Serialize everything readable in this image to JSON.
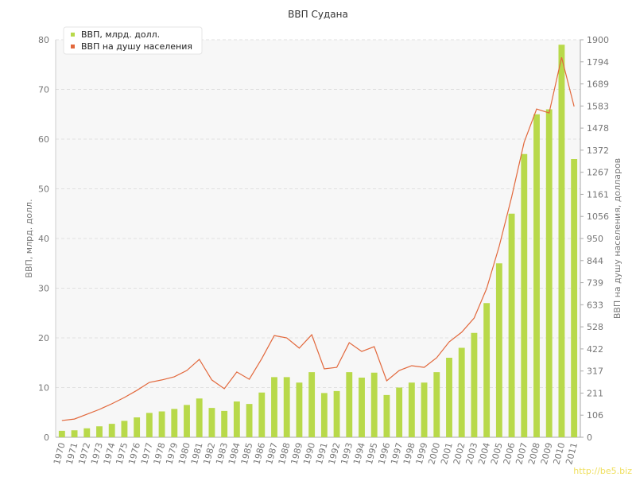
{
  "chart_data": {
    "type": "bar_line",
    "title": "ВВП Судана",
    "y_label": "ВВП, млрд. долл.",
    "y2_label": "ВВП на душу населения, долларов",
    "watermark": "http://be5.biz",
    "categories": [
      "1970",
      "1971",
      "1972",
      "1973",
      "1974",
      "1975",
      "1976",
      "1977",
      "1978",
      "1979",
      "1980",
      "1981",
      "1982",
      "1983",
      "1984",
      "1985",
      "1986",
      "1987",
      "1988",
      "1989",
      "1990",
      "1991",
      "1992",
      "1993",
      "1994",
      "1995",
      "1996",
      "1997",
      "1998",
      "1999",
      "2000",
      "2001",
      "2002",
      "2003",
      "2004",
      "2005",
      "2006",
      "2007",
      "2008",
      "2009",
      "2010",
      "2011"
    ],
    "series": [
      {
        "name": "ВВП, млрд. долл.",
        "color": "#b8d94a",
        "type": "bar",
        "values": [
          1.3,
          1.4,
          1.8,
          2.2,
          2.7,
          3.3,
          4.0,
          4.9,
          5.2,
          5.7,
          6.5,
          7.8,
          5.9,
          5.3,
          7.2,
          6.7,
          9.0,
          12.1,
          12.1,
          11.0,
          13.1,
          8.9,
          9.3,
          13.1,
          12.0,
          13.0,
          8.5,
          10.0,
          11.0,
          11.0,
          13.1,
          16.0,
          18.0,
          21.0,
          27.0,
          35.0,
          45.0,
          57.0,
          65.0,
          66.0,
          79.0,
          56.0
        ]
      },
      {
        "name": "ВВП на душу населения",
        "color": "#e2683c",
        "type": "line",
        "axis": "y2",
        "values": [
          80,
          87,
          110,
          133,
          160,
          190,
          224,
          262,
          274,
          289,
          319,
          372,
          274,
          232,
          312,
          277,
          376,
          486,
          475,
          426,
          490,
          327,
          334,
          452,
          410,
          433,
          270,
          319,
          342,
          334,
          380,
          456,
          502,
          570,
          711,
          912,
          1148,
          1410,
          1569,
          1550,
          1816,
          1581
        ]
      }
    ],
    "ylim": [
      0,
      80
    ],
    "yticks": [
      0,
      10,
      20,
      30,
      40,
      50,
      60,
      70,
      80
    ],
    "y2lim": [
      0,
      1900
    ],
    "y2ticks": [
      0,
      {
        "value": 105.56,
        "label": "106"
      },
      {
        "value": 211.11,
        "label": "211"
      },
      {
        "value": 316.67,
        "label": "317"
      },
      {
        "value": 422.22,
        "label": "422"
      },
      {
        "value": 527.78,
        "label": "528"
      },
      {
        "value": 633.33,
        "label": "633"
      },
      {
        "value": 738.89,
        "label": "739"
      },
      {
        "value": 844.44,
        "label": "844"
      },
      950,
      {
        "value": 1055.56,
        "label": "1056"
      },
      {
        "value": 1161.11,
        "label": "1161"
      },
      {
        "value": 1266.67,
        "label": "1267"
      },
      {
        "value": 1372.22,
        "label": "1372"
      },
      {
        "value": 1477.78,
        "label": "1478"
      },
      {
        "value": 1583.33,
        "label": "1583"
      },
      {
        "value": 1688.89,
        "label": "1689"
      },
      {
        "value": 1794.44,
        "label": "1794"
      },
      1900
    ],
    "grid": true,
    "legend": "top-left"
  }
}
